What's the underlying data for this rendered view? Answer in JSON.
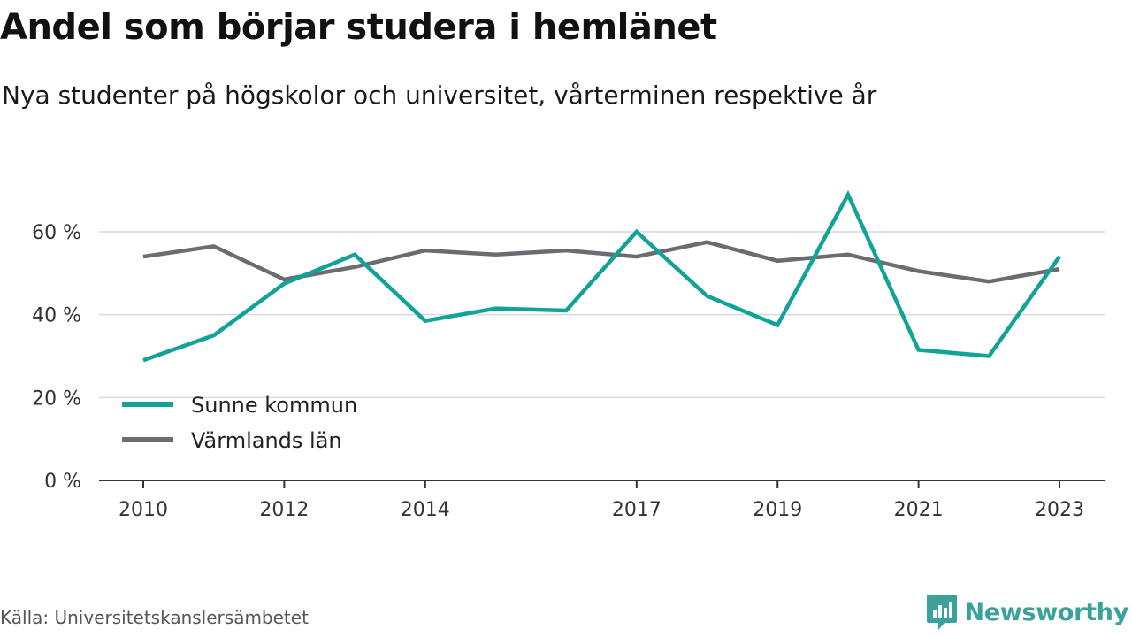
{
  "title": "Andel som börjar studera i hemlänet",
  "subtitle": "Nya studenter på högskolor och universitet, vårterminen respektive år",
  "source": "Källa: Universitetskanslersämbetet",
  "brand": "Newsworthy",
  "colors": {
    "sunne": "#12a398",
    "varmland": "#6c6b72",
    "grid": "#d9d9d9",
    "axis": "#333333",
    "brand": "#3aa19c"
  },
  "chart_data": {
    "type": "line",
    "x": [
      2010,
      2011,
      2012,
      2013,
      2014,
      2015,
      2016,
      2017,
      2018,
      2019,
      2020,
      2021,
      2022,
      2023
    ],
    "x_tick_labels": [
      "2010",
      "2012",
      "2014",
      "2017",
      "2019",
      "2021",
      "2023"
    ],
    "y_tick_values": [
      0,
      20,
      40,
      60
    ],
    "y_tick_labels": [
      "0 %",
      "20 %",
      "40 %",
      "60 %"
    ],
    "ylim": [
      0,
      70
    ],
    "grid": true,
    "legend_position": "bottom-left",
    "series": [
      {
        "name": "Sunne kommun",
        "color": "#12a398",
        "values": [
          29,
          35,
          47.5,
          54.5,
          38.5,
          41.5,
          41,
          60,
          44.5,
          37.5,
          69,
          31.5,
          30,
          54
        ]
      },
      {
        "name": "Värmlands län",
        "color": "#6c6b72",
        "values": [
          54,
          56.5,
          48.5,
          51.5,
          55.5,
          54.5,
          55.5,
          54,
          57.5,
          53,
          54.5,
          50.5,
          48,
          51
        ]
      }
    ]
  }
}
